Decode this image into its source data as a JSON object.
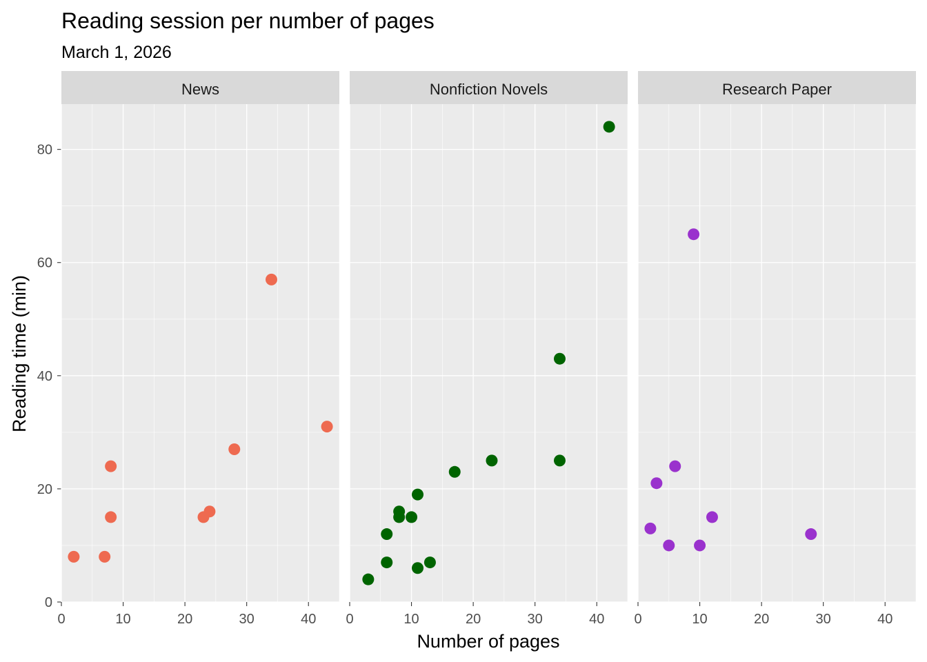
{
  "chart_data": {
    "type": "scatter",
    "title": "Reading session per number of pages",
    "subtitle": "March 1, 2026",
    "xlabel": "Number of pages",
    "ylabel": "Reading time (min)",
    "xlim": [
      0,
      45
    ],
    "ylim": [
      0,
      88
    ],
    "x_ticks": [
      "0",
      "10",
      "20",
      "30",
      "40"
    ],
    "y_ticks": [
      "0",
      "20",
      "40",
      "60",
      "80"
    ],
    "grid": true,
    "facets": [
      {
        "name": "News",
        "color": "#EE6A50",
        "points": [
          {
            "x": 2,
            "y": 8
          },
          {
            "x": 7,
            "y": 8
          },
          {
            "x": 8,
            "y": 15
          },
          {
            "x": 8,
            "y": 24
          },
          {
            "x": 23,
            "y": 15
          },
          {
            "x": 24,
            "y": 16
          },
          {
            "x": 28,
            "y": 27
          },
          {
            "x": 34,
            "y": 57
          },
          {
            "x": 43,
            "y": 31
          }
        ]
      },
      {
        "name": "Nonfiction Novels",
        "color": "#006400",
        "points": [
          {
            "x": 3,
            "y": 4
          },
          {
            "x": 6,
            "y": 7
          },
          {
            "x": 6,
            "y": 12
          },
          {
            "x": 8,
            "y": 15
          },
          {
            "x": 8,
            "y": 16
          },
          {
            "x": 10,
            "y": 15
          },
          {
            "x": 11,
            "y": 6
          },
          {
            "x": 11,
            "y": 19
          },
          {
            "x": 13,
            "y": 7
          },
          {
            "x": 17,
            "y": 23
          },
          {
            "x": 23,
            "y": 25
          },
          {
            "x": 34,
            "y": 25
          },
          {
            "x": 34,
            "y": 43
          },
          {
            "x": 42,
            "y": 84
          }
        ]
      },
      {
        "name": "Research Paper",
        "color": "#9A32CD",
        "points": [
          {
            "x": 2,
            "y": 13
          },
          {
            "x": 3,
            "y": 21
          },
          {
            "x": 5,
            "y": 10
          },
          {
            "x": 6,
            "y": 24
          },
          {
            "x": 9,
            "y": 65
          },
          {
            "x": 10,
            "y": 10
          },
          {
            "x": 12,
            "y": 15
          },
          {
            "x": 28,
            "y": 12
          }
        ]
      }
    ]
  }
}
